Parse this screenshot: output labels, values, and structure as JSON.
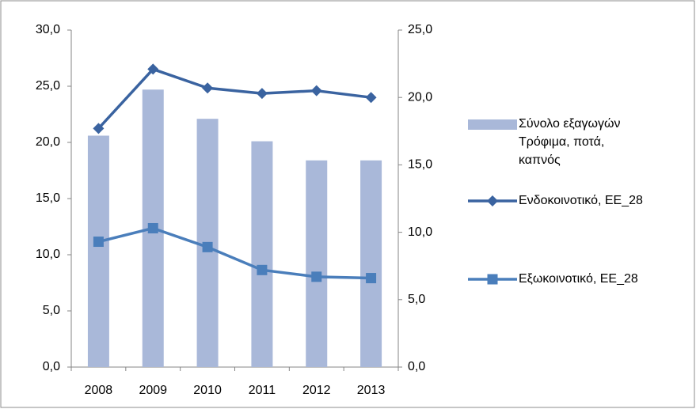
{
  "chart_data": {
    "type": "bar",
    "categories": [
      "2008",
      "2009",
      "2010",
      "2011",
      "2012",
      "2013"
    ],
    "series": [
      {
        "name": "Σύνολο εξαγωγών Τρόφιμα, ποτά, καπνός",
        "type": "bar",
        "color": "#a9b8d9",
        "values": [
          20.6,
          24.7,
          22.1,
          20.1,
          18.4,
          18.4
        ]
      },
      {
        "name": "Ενδοκοινοτικό, ΕΕ_28",
        "type": "line",
        "marker": "diamond",
        "axis": "y2",
        "color": "#3a63a0",
        "values": [
          17.7,
          22.1,
          20.7,
          20.3,
          20.5,
          20.0
        ]
      },
      {
        "name": "Εξωκοινοτικό, ΕΕ_28",
        "type": "line",
        "marker": "square",
        "axis": "y2",
        "color": "#4a7ebb",
        "values": [
          9.3,
          10.3,
          8.9,
          7.2,
          6.7,
          6.6
        ]
      }
    ],
    "ylim": [
      0,
      30
    ],
    "yticks": [
      {
        "value": 0,
        "label": "0,0"
      },
      {
        "value": 5,
        "label": "5,0"
      },
      {
        "value": 10,
        "label": "10,0"
      },
      {
        "value": 15,
        "label": "15,0"
      },
      {
        "value": 20,
        "label": "20,0"
      },
      {
        "value": 25,
        "label": "25,0"
      },
      {
        "value": 30,
        "label": "30,0"
      }
    ],
    "y2lim": [
      0,
      25
    ],
    "y2ticks": [
      {
        "value": 0,
        "label": "0,0"
      },
      {
        "value": 5,
        "label": "5,0"
      },
      {
        "value": 10,
        "label": "10,0"
      },
      {
        "value": 15,
        "label": "15,0"
      },
      {
        "value": 20,
        "label": "20,0"
      },
      {
        "value": 25,
        "label": "25,0"
      }
    ],
    "grid": false,
    "legend": "right"
  }
}
